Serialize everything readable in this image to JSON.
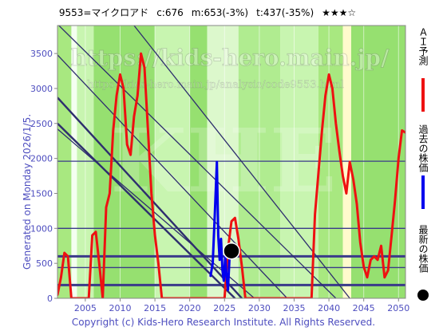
{
  "header": {
    "code_name": "9553=マイクロアド",
    "current": "c:676",
    "mid": "m:653(-3%)",
    "target": "t:437(-35%)",
    "stars": "★★★☆"
  },
  "watermark": {
    "main": "https://kids-hero.main.jp/",
    "sub": "https://kids-hero.main.jp/analysis/code9553.html",
    "logo": "KHE"
  },
  "generated_note": "Generated on Monday 2026/1/5.",
  "footer": "Copyright (c) Kids-Hero Research Institute. All Rights Reserved.",
  "legend": [
    {
      "label": "ＡＩ予測",
      "color": "#ee1111",
      "marker": "line"
    },
    {
      "label": "過去の株価",
      "color": "#0000ee",
      "marker": "line"
    },
    {
      "label": "最新の株価",
      "color": "#000000",
      "marker": "dot"
    }
  ],
  "colors": {
    "prediction": "#ee1111",
    "past_price": "#0000ee",
    "latest": "#000000",
    "trend_line": "#2e2e6e",
    "hline": "#3a3a8a",
    "axis_text": "#4d4dbf"
  },
  "chart_data": {
    "type": "line",
    "xlim": [
      2001,
      2051
    ],
    "ylim": [
      0,
      3900
    ],
    "x_ticks": [
      2005,
      2010,
      2015,
      2020,
      2025,
      2030,
      2035,
      2040,
      2045,
      2050
    ],
    "y_ticks": [
      0,
      500,
      1000,
      1500,
      2000,
      2500,
      3000,
      3500
    ],
    "background_bands": [
      {
        "from": 2001.0,
        "to": 2003.0,
        "color": "#a8e880"
      },
      {
        "from": 2003.0,
        "to": 2003.8,
        "color": "#f4fff0"
      },
      {
        "from": 2003.8,
        "to": 2006.2,
        "color": "#c8f5b0"
      },
      {
        "from": 2006.2,
        "to": 2015.0,
        "color": "#96e070"
      },
      {
        "from": 2015.0,
        "to": 2020.0,
        "color": "#c8f5b0"
      },
      {
        "from": 2020.0,
        "to": 2022.5,
        "color": "#96e070"
      },
      {
        "from": 2022.5,
        "to": 2027.0,
        "color": "#dcf8cc"
      },
      {
        "from": 2027.0,
        "to": 2033.0,
        "color": "#b0ec90"
      },
      {
        "from": 2033.0,
        "to": 2038.5,
        "color": "#c8f5b0"
      },
      {
        "from": 2038.5,
        "to": 2042.0,
        "color": "#a8e880"
      },
      {
        "from": 2042.0,
        "to": 2043.2,
        "color": "#fffacd"
      },
      {
        "from": 2043.2,
        "to": 2051.0,
        "color": "#96e070"
      }
    ],
    "horizontal_levels": [
      {
        "value": 190,
        "weight": "thick"
      },
      {
        "value": 440,
        "weight": "thin"
      },
      {
        "value": 600,
        "weight": "thick"
      },
      {
        "value": 1000,
        "weight": "thin"
      },
      {
        "value": 1960,
        "weight": "thin"
      }
    ],
    "trend_lines": [
      {
        "x": [
          2001,
          2027.5
        ],
        "y": [
          2870,
          0
        ]
      },
      {
        "x": [
          2001,
          2026.5
        ],
        "y": [
          2500,
          0
        ]
      },
      {
        "x": [
          2001,
          2029.3
        ],
        "y": [
          2420,
          0
        ]
      },
      {
        "x": [
          2001,
          2034.0
        ],
        "y": [
          3480,
          0
        ]
      },
      {
        "x": [
          2001,
          2041.0
        ],
        "y": [
          3920,
          0
        ]
      },
      {
        "x": [
          2012,
          2043.0
        ],
        "y": [
          3900,
          0
        ]
      }
    ],
    "series": [
      {
        "name": "ＡＩ予測",
        "x": [
          2001.0,
          2001.5,
          2002.0,
          2002.5,
          2003.0,
          2003.5,
          2004.0,
          2004.5,
          2005.0,
          2005.5,
          2006.0,
          2006.5,
          2007.0,
          2007.5,
          2008.0,
          2008.5,
          2009.0,
          2009.5,
          2010.0,
          2010.5,
          2011.0,
          2011.5,
          2012.0,
          2012.5,
          2013.0,
          2013.5,
          2014.0,
          2014.5,
          2015.0,
          2015.5,
          2016.0,
          2016.5,
          2017.0,
          2017.5,
          2018.0,
          2018.5,
          2019.0,
          2019.5,
          2020.0,
          2020.5,
          2021.0,
          2021.5,
          2022.0,
          2022.5,
          2023.0,
          2023.5,
          2024.0,
          2024.5,
          2025.0,
          2025.5,
          2026.0,
          2026.5,
          2027.0,
          2027.5,
          2028.0,
          2028.5,
          2029.0,
          2029.5,
          2030.0,
          2030.5,
          2031.0,
          2031.5,
          2032.0,
          2032.5,
          2033.0,
          2033.5,
          2034.0,
          2034.5,
          2035.0,
          2035.5,
          2036.0,
          2036.5,
          2037.0,
          2037.5,
          2038.0,
          2038.5,
          2039.0,
          2039.5,
          2040.0,
          2040.5,
          2041.0,
          2041.5,
          2042.0,
          2042.5,
          2043.0,
          2043.5,
          2044.0,
          2044.5,
          2045.0,
          2045.5,
          2046.0,
          2046.5,
          2047.0,
          2047.5,
          2048.0,
          2048.5,
          2049.0,
          2049.5,
          2050.0,
          2050.5,
          2051.0
        ],
        "y": [
          50,
          300,
          650,
          600,
          0,
          0,
          0,
          0,
          0,
          0,
          900,
          950,
          500,
          0,
          1300,
          1500,
          2400,
          2900,
          3200,
          3000,
          2200,
          2050,
          2600,
          2900,
          3500,
          3300,
          2400,
          1500,
          900,
          500,
          0,
          0,
          0,
          0,
          0,
          0,
          0,
          0,
          0,
          0,
          0,
          0,
          0,
          0,
          0,
          0,
          0,
          0,
          0,
          700,
          1100,
          1150,
          850,
          450,
          0,
          0,
          0,
          0,
          0,
          0,
          0,
          0,
          0,
          0,
          0,
          0,
          0,
          0,
          0,
          0,
          0,
          0,
          0,
          0,
          1200,
          1800,
          2400,
          2900,
          3200,
          3000,
          2500,
          2100,
          1750,
          1500,
          1950,
          1700,
          1350,
          800,
          450,
          300,
          550,
          600,
          550,
          750,
          300,
          400,
          900,
          1400,
          2000,
          2400,
          2370
        ]
      },
      {
        "name": "過去の株価",
        "x": [
          2023.0,
          2023.3,
          2023.6,
          2023.9,
          2024.1,
          2024.3,
          2024.5,
          2024.7,
          2024.9,
          2025.1,
          2025.3,
          2025.5,
          2025.7,
          2026.0
        ],
        "y": [
          320,
          500,
          1200,
          1950,
          900,
          550,
          850,
          400,
          250,
          600,
          300,
          120,
          550,
          676
        ]
      }
    ],
    "latest_point": {
      "x": 2026.0,
      "y": 676
    }
  }
}
